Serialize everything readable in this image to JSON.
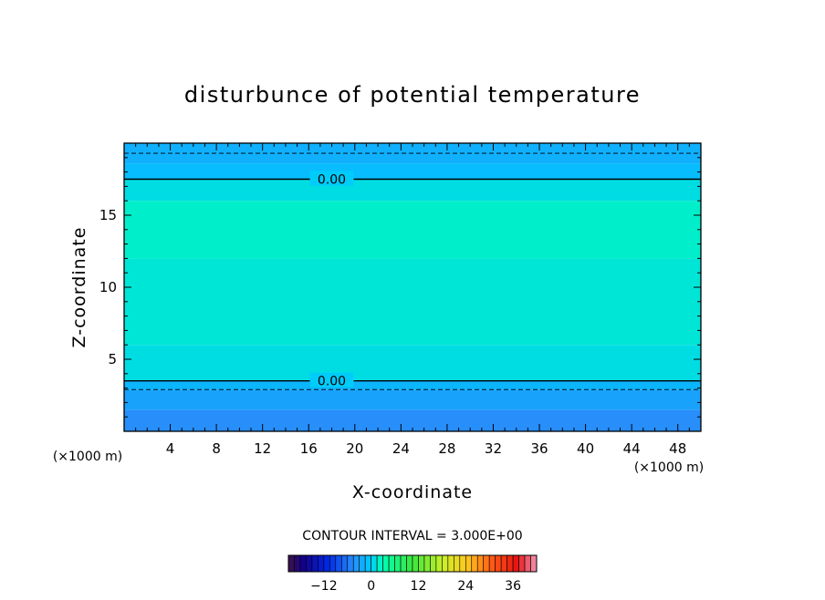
{
  "chart_data": {
    "type": "heatmap",
    "title": "disturbunce of potential temperature",
    "xlabel": "X-coordinate",
    "ylabel": "Z-coordinate",
    "x_unit": "(×1000 m)",
    "z_unit": "(×1000 m)",
    "xlim": [
      0,
      50
    ],
    "ylim": [
      0,
      20
    ],
    "x_ticks": [
      4,
      8,
      12,
      16,
      20,
      24,
      28,
      32,
      36,
      40,
      44,
      48
    ],
    "y_ticks": [
      5,
      10,
      15
    ],
    "contour_interval_text": "CONTOUR INTERVAL = 3.000E+00",
    "colorbar": {
      "range": [
        -21,
        42
      ],
      "step": 1.5,
      "tick_values": [
        -12,
        0,
        12,
        24,
        36
      ],
      "tick_labels": [
        "−12",
        "0",
        "12",
        "24",
        "36"
      ]
    },
    "bands": [
      {
        "z0": 0.0,
        "z1": 1.5,
        "value": -4.5
      },
      {
        "z0": 1.5,
        "z1": 2.9,
        "value": -3.0
      },
      {
        "z0": 2.9,
        "z1": 3.5,
        "value": -1.5
      },
      {
        "z0": 3.5,
        "z1": 6.0,
        "value": 1.0
      },
      {
        "z0": 6.0,
        "z1": 12.0,
        "value": 1.5
      },
      {
        "z0": 12.0,
        "z1": 16.0,
        "value": 2.0
      },
      {
        "z0": 16.0,
        "z1": 17.5,
        "value": 1.0
      },
      {
        "z0": 17.5,
        "z1": 18.6,
        "value": -1.0
      },
      {
        "z0": 18.6,
        "z1": 20.0,
        "value": -2.0
      }
    ],
    "contours": [
      {
        "z": 17.5,
        "level": 0.0,
        "label": "0.00",
        "label_x": 18,
        "style": "solid"
      },
      {
        "z": 3.5,
        "level": 0.0,
        "label": "0.00",
        "label_x": 18,
        "style": "solid"
      },
      {
        "z": 19.3,
        "level": -3.0,
        "style": "dashed"
      },
      {
        "z": 2.9,
        "level": -3.0,
        "style": "dashed"
      }
    ]
  }
}
